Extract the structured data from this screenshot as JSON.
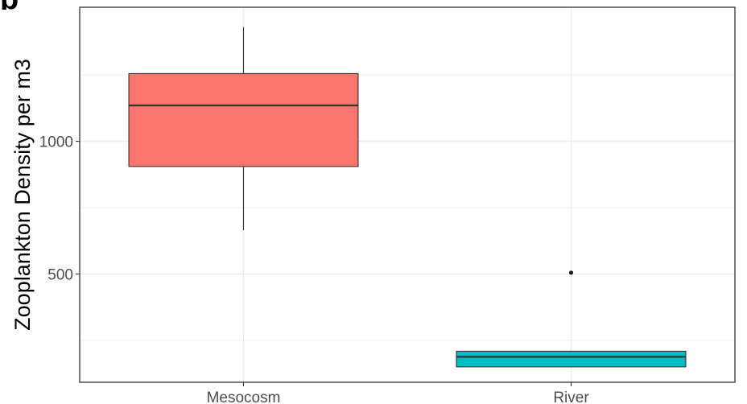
{
  "chart_data": {
    "type": "boxplot",
    "title": "",
    "xlabel": "",
    "ylabel": "Zooplankton Density per m3",
    "categories": [
      "Mesocosm",
      "River"
    ],
    "series": [
      {
        "category": "Mesocosm",
        "min": 665,
        "q1": 905,
        "median": 1135,
        "q3": 1255,
        "max": 1430,
        "outliers": [],
        "fill": "#F8766D"
      },
      {
        "category": "River",
        "min": 150,
        "q1": 150,
        "median": 188,
        "q3": 209,
        "max": 209,
        "outliers": [
          505
        ],
        "fill": "#00BFC4"
      }
    ],
    "y_ticks": [
      {
        "value": 500,
        "label": "500"
      },
      {
        "value": 1000,
        "label": "1000"
      }
    ],
    "ylim": [
      92,
      1505
    ],
    "grid": true,
    "legend": "none"
  }
}
